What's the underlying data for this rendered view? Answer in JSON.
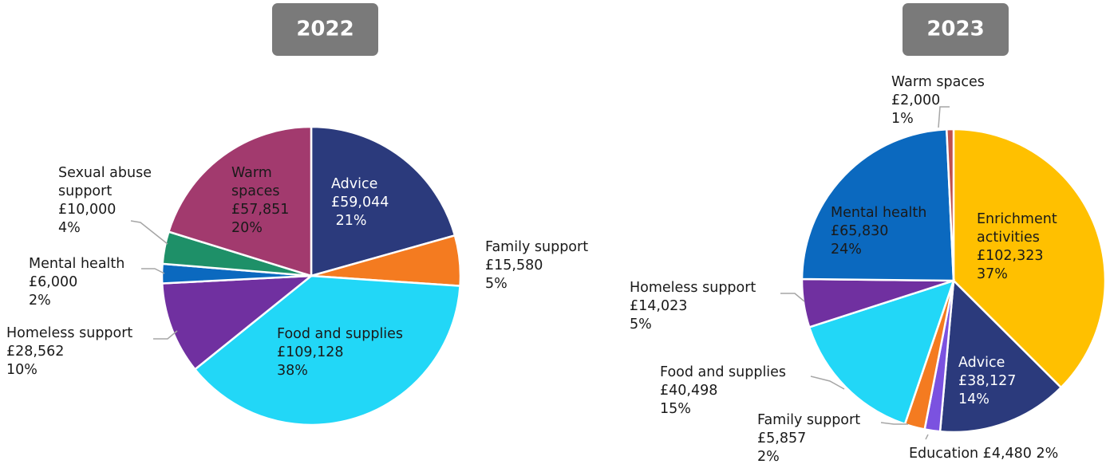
{
  "chart_data": [
    {
      "type": "pie",
      "title": "2022",
      "slices": [
        {
          "label": "Advice",
          "amount": "£59,044",
          "pct_text": " 21%",
          "value": 59044,
          "color": "#2B3A7C",
          "label_lines": [
            "Advice"
          ]
        },
        {
          "label": "Family support",
          "amount": "£15,580",
          "pct_text": "5%",
          "value": 15580,
          "color": "#F47B20",
          "label_lines": [
            "Family support"
          ]
        },
        {
          "label": "Food and supplies",
          "amount": "£109,128",
          "pct_text": "38%",
          "value": 109128,
          "color": "#22D7F7",
          "label_lines": [
            "Food and supplies"
          ]
        },
        {
          "label": "Homeless support",
          "amount": "£28,562",
          "pct_text": "10%",
          "value": 28562,
          "color": "#7030A0",
          "label_lines": [
            "Homeless support"
          ]
        },
        {
          "label": "Mental health",
          "amount": "£6,000",
          "pct_text": "2%",
          "value": 6000,
          "color": "#0B69BF",
          "label_lines": [
            "Mental health"
          ]
        },
        {
          "label": "Sexual abuse support",
          "amount": "£10,000",
          "pct_text": "4%",
          "value": 10000,
          "color": "#1E9068",
          "label_lines": [
            "Sexual abuse",
            "support"
          ]
        },
        {
          "label": "Warm spaces",
          "amount": "£57,851",
          "pct_text": "20%",
          "value": 57851,
          "color": "#A23A6E",
          "label_lines": [
            "Warm",
            "spaces"
          ]
        }
      ]
    },
    {
      "type": "pie",
      "title": "2023",
      "slices": [
        {
          "label": "Enrichment activities",
          "amount": "£102,323",
          "pct_text": "37%",
          "value": 102323,
          "color": "#FFC000",
          "label_lines": [
            "Enrichment",
            "activities"
          ]
        },
        {
          "label": "Advice",
          "amount": "£38,127",
          "pct_text": "14%",
          "value": 38127,
          "color": "#2B3A7C",
          "label_lines": [
            "Advice"
          ]
        },
        {
          "label": "Education",
          "amount": "£4,480",
          "pct_text": "2%",
          "value": 4480,
          "color": "#7B52E0",
          "label_lines": [
            "Education"
          ]
        },
        {
          "label": "Family support",
          "amount": "£5,857",
          "pct_text": "2%",
          "value": 5857,
          "color": "#F47B20",
          "label_lines": [
            "Family support"
          ]
        },
        {
          "label": "Food and supplies",
          "amount": "£40,498",
          "pct_text": "15%",
          "value": 40498,
          "color": "#22D7F7",
          "label_lines": [
            "Food and supplies"
          ]
        },
        {
          "label": "Homeless support",
          "amount": "£14,023",
          "pct_text": "5%",
          "value": 14023,
          "color": "#7030A0",
          "label_lines": [
            "Homeless support"
          ]
        },
        {
          "label": "Mental health",
          "amount": "£65,830",
          "pct_text": "24%",
          "value": 65830,
          "color": "#0B69BF",
          "label_lines": [
            "Mental health"
          ]
        },
        {
          "label": "Warm spaces",
          "amount": "£2,000",
          "pct_text": "1%",
          "value": 2000,
          "color": "#C0504D",
          "label_lines": [
            "Warm spaces"
          ]
        }
      ]
    }
  ]
}
